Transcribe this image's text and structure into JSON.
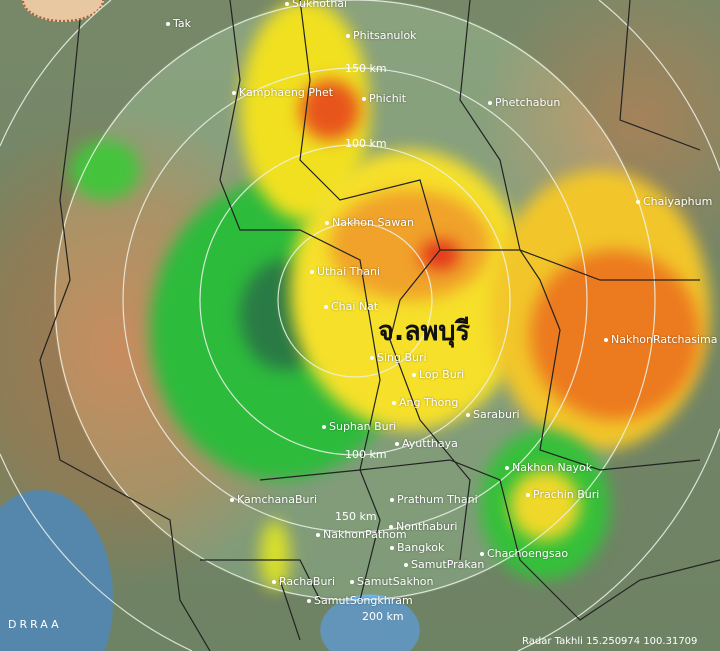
{
  "province_label": "จ.ลพบุรี",
  "ring_labels": [
    "150 km",
    "100 km",
    "100 km",
    "150 km",
    "200 km"
  ],
  "cities": [
    "Sukhothai",
    "Tak",
    "Phitsanulok",
    "Kamphaeng Phet",
    "Phichit",
    "Phetchabun",
    "Nakhon Sawan",
    "Uthai Thani",
    "Chai Nat",
    "Sing Buri",
    "Lop Buri",
    "Ang Thong",
    "Saraburi",
    "Suphan Buri",
    "Ayutthaya",
    "Chaiyaphum",
    "NakhonRatchasima",
    "Nakhon Nayok",
    "Prachin Buri",
    "KamchanaBuri",
    "Prathum Thani",
    "Nonthaburi",
    "NakhonPathom",
    "Bangkok",
    "Chachoengsao",
    "SamutPrakan",
    "RachaBuri",
    "SamutSakhon",
    "SamutSongkhram"
  ],
  "watermark": "DRRAA",
  "footer": "Radar Takhli 15.250974 100.31709",
  "colors": {
    "light_rain": "#2fbf3a",
    "moderate": "#f4f000",
    "heavy": "#f08a1a",
    "intense": "#e02a1a"
  }
}
